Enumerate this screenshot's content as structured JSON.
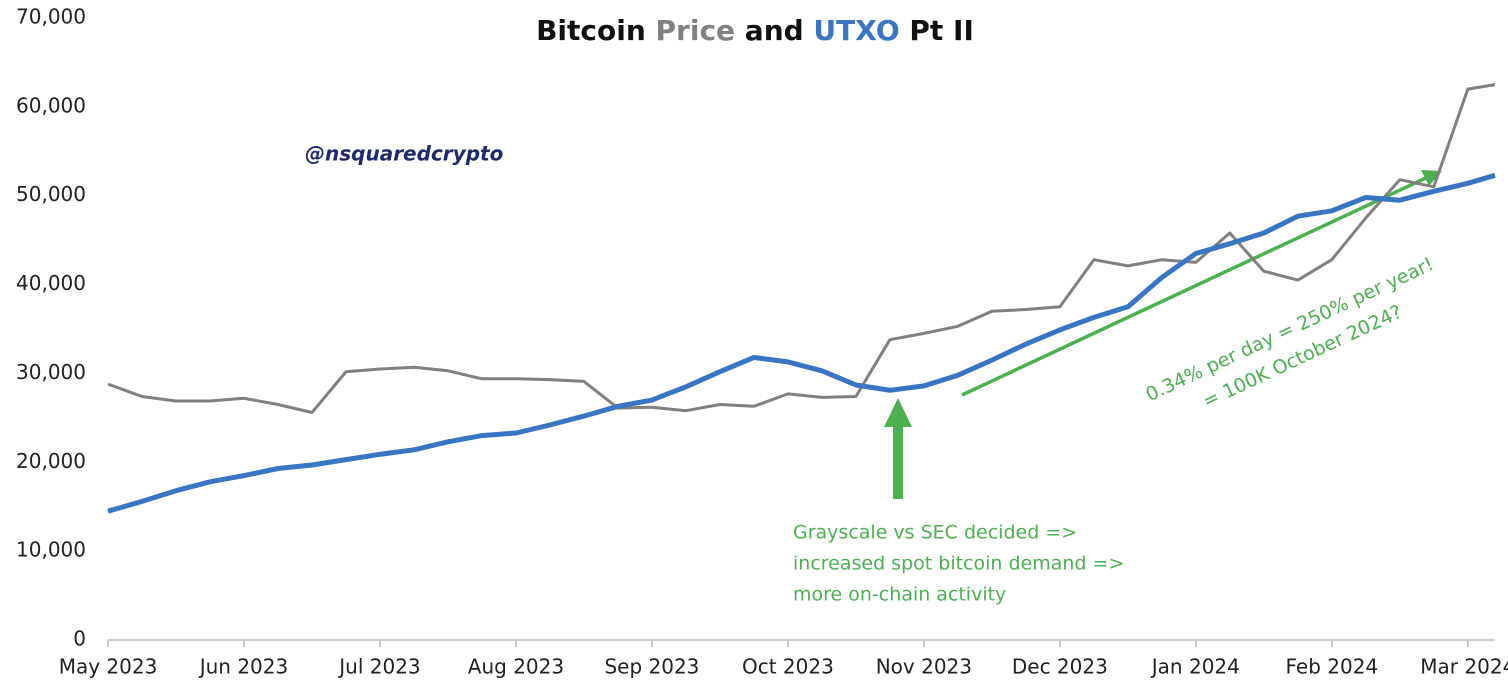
{
  "chart_data": {
    "type": "line",
    "title_parts": [
      "Bitcoin",
      "and",
      "Pt II"
    ],
    "watermark": "@nsquaredcrypto",
    "annotations": [
      [
        "Grayscale vs SEC decided =>",
        "increased spot bitcoin demand =>",
        "more on-chain activity"
      ],
      [
        "0.34% per day = 250% per year!",
        "= 100K October 2024?"
      ]
    ],
    "annotation_color": "#4caf50",
    "xlim": [
      0,
      10.2
    ],
    "xticks": [
      {
        "value": 0,
        "label": "May 2023"
      },
      {
        "value": 1,
        "label": "Jun 2023"
      },
      {
        "value": 2,
        "label": "Jul 2023"
      },
      {
        "value": 3,
        "label": "Aug 2023"
      },
      {
        "value": 4,
        "label": "Sep 2023"
      },
      {
        "value": 5,
        "label": "Oct 2023"
      },
      {
        "value": 6,
        "label": "Nov 2023"
      },
      {
        "value": 7,
        "label": "Dec 2023"
      },
      {
        "value": 8,
        "label": "Jan 2024"
      },
      {
        "value": 9,
        "label": "Feb 2024"
      },
      {
        "value": 10,
        "label": "Mar 2024"
      }
    ],
    "ylim": [
      0,
      70000
    ],
    "yticks": [
      0,
      {
        "value": 10000,
        "label": "10,000"
      },
      {
        "value": 20000,
        "label": "20,000"
      },
      {
        "value": 30000,
        "label": "30,000"
      },
      {
        "value": 40000,
        "label": "40,000"
      },
      {
        "value": 50000,
        "label": "50,000"
      },
      {
        "value": 60000,
        "label": "60,000"
      },
      {
        "value": 70000,
        "label": "70,000"
      }
    ],
    "grid": false,
    "x": [
      0,
      0.25,
      0.5,
      0.75,
      1,
      1.25,
      1.5,
      1.75,
      2,
      2.25,
      2.5,
      2.75,
      3,
      3.25,
      3.5,
      3.75,
      4,
      4.25,
      4.5,
      4.75,
      5,
      5.25,
      5.5,
      5.75,
      6,
      6.25,
      6.5,
      6.75,
      7,
      7.25,
      7.5,
      7.75,
      8,
      8.25,
      8.5,
      8.75,
      9,
      9.25,
      9.5,
      9.75,
      10,
      10.2
    ],
    "series": [
      {
        "name": "Price",
        "color": "#808080",
        "width": 3,
        "values": [
          28800,
          27400,
          26900,
          26900,
          27200,
          26500,
          25600,
          30200,
          30500,
          30700,
          30300,
          29400,
          29400,
          29300,
          29100,
          26100,
          26200,
          25800,
          26500,
          26300,
          27700,
          27300,
          27400,
          33800,
          34500,
          35300,
          37000,
          37200,
          37500,
          42800,
          42100,
          42800,
          42500,
          45800,
          41500,
          40500,
          42800,
          47500,
          51800,
          51000,
          62000,
          62500
        ]
      },
      {
        "name": "UTXO",
        "color": "#3a75c4",
        "width": 5,
        "values": [
          14500,
          15600,
          16800,
          17800,
          18500,
          19300,
          19700,
          20300,
          20900,
          21400,
          22300,
          23000,
          23300,
          24200,
          25200,
          26300,
          27000,
          28500,
          30200,
          31800,
          31300,
          30300,
          28700,
          28100,
          28600,
          29800,
          31500,
          33300,
          34900,
          36300,
          37500,
          40800,
          43500,
          44600,
          45800,
          47700,
          48300,
          49800,
          49500,
          50500,
          51400,
          52300
        ]
      }
    ]
  }
}
